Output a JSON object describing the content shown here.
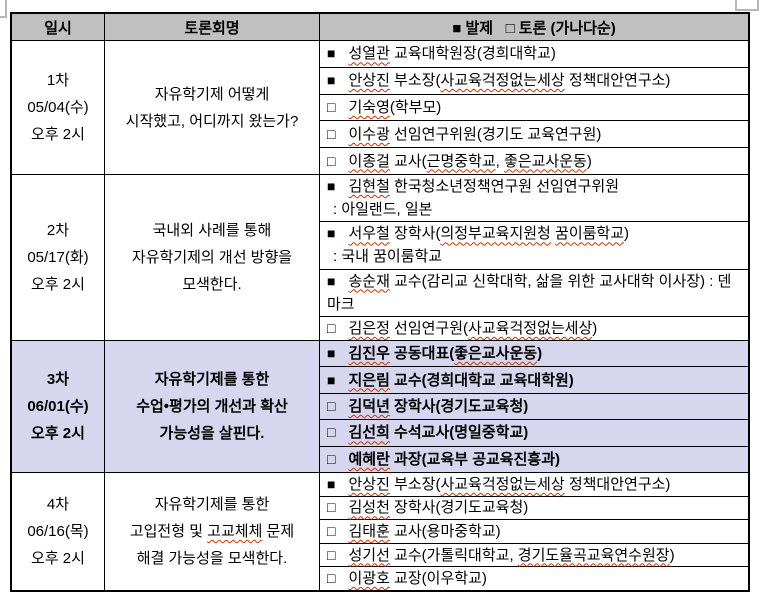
{
  "colors": {
    "header_bg": "#c0c0c0",
    "highlight_bg": "#d6d6ee",
    "border": "#000000",
    "misspell_underline": "#cc3300",
    "page_bg": "#ffffff"
  },
  "icons": {
    "presenter_marker": "■",
    "discussant_marker": "□"
  },
  "table": {
    "header": {
      "date": "일시",
      "title": "토론회명",
      "speakers": "■ 발제   □ 토론 (가나다순)"
    },
    "sessions": [
      {
        "highlight": false,
        "date_lines": [
          "1차",
          "05/04(수)",
          "오후 2시"
        ],
        "title_lines": [
          {
            "text": "자유학기제 어떻게"
          },
          {
            "text": "시작했고, 어디까지 왔는가?"
          }
        ],
        "entries": [
          {
            "marker": "■",
            "lines": [
              {
                "text": "성열관 교육대학원장(경희대학교)",
                "wavy": [
                  "성열관"
                ]
              }
            ]
          },
          {
            "marker": "■",
            "lines": [
              {
                "text": "안상진 부소장(사교육걱정없는세상 정책대안연구소)",
                "wavy": [
                  "안상진",
                  "사교육걱정없는세상"
                ]
              }
            ]
          },
          {
            "marker": "□",
            "lines": [
              {
                "text": "기숙영(학부모)",
                "wavy": [
                  "기숙영"
                ]
              }
            ]
          },
          {
            "marker": "□",
            "lines": [
              {
                "text": "이수광 선임연구위원(경기도 교육연구원)",
                "wavy": [
                  "이수광"
                ]
              }
            ]
          },
          {
            "marker": "□",
            "lines": [
              {
                "text": "이종걸 교사(근명중학교, 좋은교사운동)",
                "wavy": [
                  "이종걸",
                  "근명중학교",
                  "좋은교사운동"
                ]
              }
            ]
          }
        ]
      },
      {
        "highlight": false,
        "date_lines": [
          "2차",
          "05/17(화)",
          "오후 2시"
        ],
        "title_lines": [
          {
            "text": "국내외 사례를 통해"
          },
          {
            "text": "자유학기제의 개선 방향을"
          },
          {
            "text": "모색한다."
          }
        ],
        "entries": [
          {
            "marker": "■",
            "lines": [
              {
                "text": "김현철 한국청소년정책연구원 선임연구위원",
                "wavy": [
                  "김현철"
                ]
              },
              {
                "text": ": 아일랜드, 일본"
              }
            ]
          },
          {
            "marker": "■",
            "lines": [
              {
                "text": "서우철 장학사(의정부교육지원청 꿈이룸학교)",
                "wavy": [
                  "서우철",
                  "의정부교육지원청",
                  "꿈이룸학교"
                ]
              },
              {
                "text": ": 국내 꿈이룸학교"
              }
            ]
          },
          {
            "marker": "■",
            "span": 2,
            "lines": [
              {
                "text": "송순재 교수(감리교 신학대학, 삶을 위한 교사대학 이사장) : 덴마크",
                "wavy": [
                  "송순재"
                ]
              }
            ]
          },
          {
            "marker": "□",
            "lines": [
              {
                "text": "김은정 선임연구원(사교육걱정없는세상)",
                "wavy": [
                  "김은정",
                  "사교육걱정없는세상"
                ]
              }
            ]
          }
        ]
      },
      {
        "highlight": true,
        "date_lines": [
          "3차",
          "06/01(수)",
          "오후 2시"
        ],
        "title_lines": [
          {
            "text": "자유학기제를 통한"
          },
          {
            "text": "수업•평가의 개선과 확산"
          },
          {
            "text": "가능성을 살핀다."
          }
        ],
        "entries": [
          {
            "marker": "■",
            "lines": [
              {
                "text": "김진우 공동대표(좋은교사운동)",
                "wavy": [
                  "김진우",
                  "좋은교사운동"
                ]
              }
            ]
          },
          {
            "marker": "■",
            "lines": [
              {
                "text": "지은림 교수(경희대학교 교육대학원)",
                "wavy": [
                  "지은림"
                ]
              }
            ]
          },
          {
            "marker": "□",
            "lines": [
              {
                "text": "김덕년 장학사(경기도교육청)",
                "wavy": [
                  "김덕년"
                ]
              }
            ]
          },
          {
            "marker": "□",
            "lines": [
              {
                "text": "김선희 수석교사(명일중학교)",
                "wavy": [
                  "김선희"
                ]
              }
            ]
          },
          {
            "marker": "□",
            "lines": [
              {
                "text": "예혜란 과장(교육부 공교육진흥과)",
                "wavy": [
                  "예혜란"
                ]
              }
            ]
          }
        ]
      },
      {
        "highlight": false,
        "date_lines": [
          "4차",
          "06/16(목)",
          "오후 2시"
        ],
        "title_lines": [
          {
            "text": "자유학기제를 통한"
          },
          {
            "text": "고입전형 및 고교체체 문제",
            "wavy": [
              "고교체체"
            ]
          },
          {
            "text": "해결 가능성을 모색한다."
          }
        ],
        "entries": [
          {
            "marker": "■",
            "lines": [
              {
                "text": "안상진 부소장(사교육걱정없는세상 정책대안연구소)",
                "wavy": [
                  "안상진",
                  "사교육걱정없는세상"
                ]
              }
            ]
          },
          {
            "marker": "□",
            "lines": [
              {
                "text": "김성천 장학사(경기도교육청)",
                "wavy": [
                  "김성천"
                ]
              }
            ]
          },
          {
            "marker": "□",
            "lines": [
              {
                "text": "김태훈 교사(용마중학교)",
                "wavy": [
                  "김태훈"
                ]
              }
            ]
          },
          {
            "marker": "□",
            "lines": [
              {
                "text": "성기선 교수(가톨릭대학교, 경기도율곡교육연수원장)",
                "wavy": [
                  "성기선",
                  "경기도율곡교육연수원장"
                ]
              }
            ]
          },
          {
            "marker": "□",
            "lines": [
              {
                "text": "이광호 교장(이우학교)",
                "wavy": [
                  "이광호"
                ]
              }
            ]
          }
        ]
      }
    ]
  }
}
